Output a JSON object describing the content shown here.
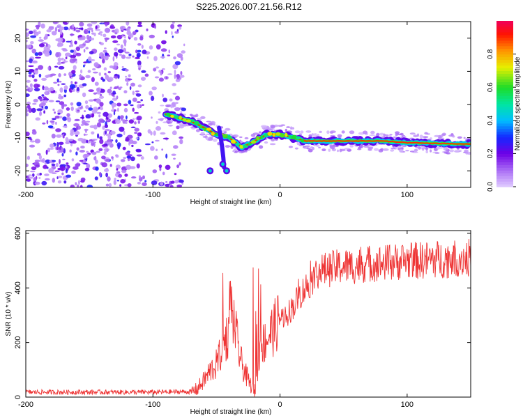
{
  "title": "S225.2026.007.21.56.R12",
  "chart_data": [
    {
      "type": "heatmap",
      "id": "spectrogram",
      "xlabel": "Height of straight line (km)",
      "ylabel": "Frequency (Hz)",
      "xlim": [
        -200,
        150
      ],
      "ylim": [
        -25,
        25
      ],
      "xticks": [
        -200,
        -100,
        0,
        100
      ],
      "yticks": [
        -20,
        -10,
        0,
        10,
        20
      ],
      "colorbar": {
        "label": "Normalized spectral amplitude",
        "range": [
          0,
          1
        ],
        "ticks": [
          "0.0",
          "0.2",
          "0.4",
          "0.6",
          "0.8"
        ]
      },
      "noise_region": {
        "x_from": -200,
        "x_to": -75,
        "amplitude": [
          0.05,
          0.3
        ]
      },
      "signal_trace": [
        {
          "x": -90,
          "f": -3
        },
        {
          "x": -80,
          "f": -4
        },
        {
          "x": -70,
          "f": -5
        },
        {
          "x": -60,
          "f": -7
        },
        {
          "x": -50,
          "f": -9
        },
        {
          "x": -40,
          "f": -10
        },
        {
          "x": -30,
          "f": -13
        },
        {
          "x": -20,
          "f": -11
        },
        {
          "x": -10,
          "f": -9
        },
        {
          "x": 0,
          "f": -9
        },
        {
          "x": 10,
          "f": -10
        },
        {
          "x": 20,
          "f": -11
        },
        {
          "x": 50,
          "f": -11
        },
        {
          "x": 80,
          "f": -11
        },
        {
          "x": 100,
          "f": -11.5
        },
        {
          "x": 150,
          "f": -12
        }
      ],
      "secondary_blobs": [
        {
          "x": -45,
          "f": -18
        },
        {
          "x": -55,
          "f": -20
        },
        {
          "x": -42,
          "f": -20
        }
      ]
    },
    {
      "type": "line",
      "id": "snr",
      "xlabel": "Height of straight line (km)",
      "ylabel": "SNR (10 * v/v)",
      "xlim": [
        -200,
        150
      ],
      "ylim": [
        0,
        610
      ],
      "xticks": [
        -200,
        -100,
        0,
        100
      ],
      "yticks": [
        0,
        200,
        400,
        600
      ],
      "color": "#ee3333",
      "series": [
        {
          "name": "SNR",
          "x": [
            -200,
            -150,
            -100,
            -70,
            -65,
            -60,
            -55,
            -50,
            -45,
            -40,
            -38,
            -36,
            -33,
            -30,
            -25,
            -20,
            -18,
            -15,
            -10,
            -5,
            0,
            5,
            10,
            15,
            20,
            25,
            30,
            40,
            50,
            60,
            70,
            80,
            90,
            100,
            110,
            120,
            130,
            140,
            150
          ],
          "values": [
            18,
            18,
            18,
            20,
            30,
            60,
            95,
            120,
            180,
            250,
            320,
            280,
            180,
            120,
            60,
            20,
            80,
            180,
            220,
            250,
            290,
            300,
            330,
            370,
            400,
            430,
            460,
            470,
            480,
            480,
            490,
            490,
            495,
            500,
            500,
            505,
            505,
            510,
            510
          ]
        }
      ]
    }
  ]
}
